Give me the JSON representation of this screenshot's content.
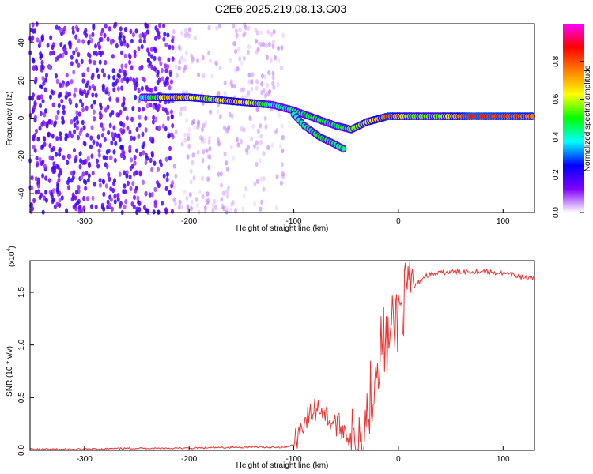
{
  "page": {
    "title": "C2E6.2025.219.08.13.G03"
  },
  "chart_data": [
    {
      "type": "heatmap",
      "xlabel": "Height of straight line (km)",
      "ylabel": "Frequency (Hz)",
      "xlim": [
        -352,
        130
      ],
      "ylim": [
        -50,
        50
      ],
      "x_ticks": [
        -300,
        -200,
        -100,
        0,
        100
      ],
      "y_ticks": [
        -40,
        -20,
        0,
        20,
        40
      ],
      "colorbar": {
        "label": "Normalized spectral amplitude",
        "range": [
          0,
          1
        ],
        "ticks": [
          "0.0",
          "0.2",
          "0.4",
          "0.6",
          "0.8"
        ],
        "colors": [
          "#ffffff",
          "#8000ff",
          "#0000ff",
          "#00ffff",
          "#00ff00",
          "#ffff00",
          "#ff8000",
          "#ff0000",
          "#ff00ff"
        ]
      },
      "trace": [
        {
          "x": -245,
          "f": 11,
          "a": 0.35
        },
        {
          "x": -220,
          "f": 11,
          "a": 0.7
        },
        {
          "x": -200,
          "f": 11,
          "a": 0.65
        },
        {
          "x": -180,
          "f": 10,
          "a": 0.55
        },
        {
          "x": -160,
          "f": 9,
          "a": 0.7
        },
        {
          "x": -140,
          "f": 8,
          "a": 0.6
        },
        {
          "x": -120,
          "f": 7,
          "a": 0.4
        },
        {
          "x": -100,
          "f": 4,
          "a": 0.45
        },
        {
          "x": -80,
          "f": 0,
          "a": 0.5
        },
        {
          "x": -60,
          "f": -4,
          "a": 0.45
        },
        {
          "x": -45,
          "f": -6,
          "a": 0.55
        },
        {
          "x": -30,
          "f": -2,
          "a": 0.6
        },
        {
          "x": -10,
          "f": 1,
          "a": 0.8
        },
        {
          "x": 10,
          "f": 1,
          "a": 0.55
        },
        {
          "x": 40,
          "f": 1,
          "a": 0.55
        },
        {
          "x": 70,
          "f": 1,
          "a": 0.85
        },
        {
          "x": 100,
          "f": 1,
          "a": 0.8
        },
        {
          "x": 130,
          "f": 1,
          "a": 0.75
        }
      ],
      "branch": [
        {
          "x": -100,
          "f": 2,
          "a": 0.4
        },
        {
          "x": -90,
          "f": -4,
          "a": 0.45
        },
        {
          "x": -75,
          "f": -10,
          "a": 0.5
        },
        {
          "x": -60,
          "f": -14,
          "a": 0.45
        },
        {
          "x": -50,
          "f": -17,
          "a": 0.45
        }
      ],
      "noise_region": {
        "x_start": -352,
        "x_end": -110,
        "dense_until": -215,
        "amplitude": 0.2
      }
    },
    {
      "type": "line",
      "xlabel": "Height of straight line (km)",
      "ylabel": "SNR (10 * v/v)",
      "y_multiplier": "(x10",
      "y_multiplier_exp": "4",
      "xlim": [
        -352,
        130
      ],
      "ylim": [
        0,
        1.8
      ],
      "x_ticks": [
        -300,
        -200,
        -100,
        0,
        100
      ],
      "y_ticks": [
        "0.0",
        "0.5",
        "1.0",
        "1.5"
      ],
      "color": "#ee3333",
      "x": [
        -352,
        -300,
        -250,
        -200,
        -150,
        -110,
        -100,
        -95,
        -90,
        -85,
        -80,
        -75,
        -70,
        -65,
        -60,
        -55,
        -50,
        -45,
        -40,
        -35,
        -30,
        -25,
        -20,
        -15,
        -10,
        -5,
        0,
        5,
        10,
        15,
        20,
        25,
        30,
        40,
        50,
        60,
        70,
        80,
        90,
        100,
        110,
        120,
        130
      ],
      "y": [
        0.01,
        0.01,
        0.02,
        0.02,
        0.03,
        0.03,
        0.05,
        0.18,
        0.28,
        0.32,
        0.38,
        0.42,
        0.35,
        0.28,
        0.25,
        0.22,
        0.2,
        0.06,
        0.1,
        0.22,
        0.35,
        0.6,
        0.9,
        1.05,
        1.0,
        1.15,
        1.3,
        1.4,
        1.5,
        1.55,
        1.6,
        1.65,
        1.67,
        1.68,
        1.69,
        1.7,
        1.7,
        1.7,
        1.69,
        1.68,
        1.66,
        1.64,
        1.62
      ]
    }
  ]
}
